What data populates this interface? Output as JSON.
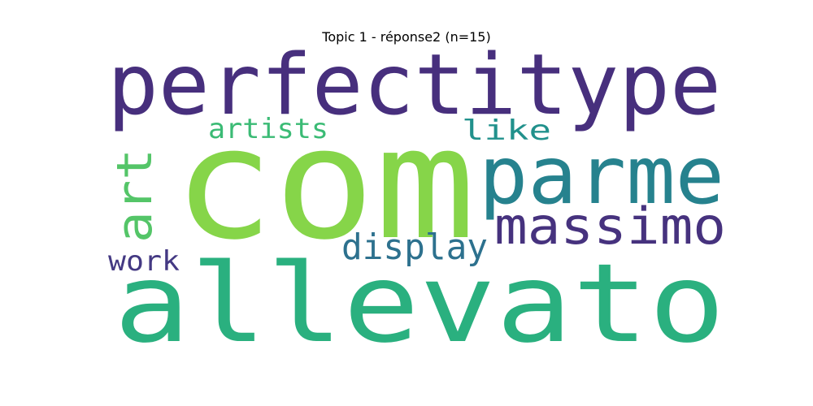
{
  "title": "Topic 1 - réponse2 (n=15)",
  "words": [
    {
      "text": "perfectitype",
      "color": "#472f7d"
    },
    {
      "text": "com",
      "color": "#86d549"
    },
    {
      "text": "parme",
      "color": "#26828e"
    },
    {
      "text": "allevato",
      "color": "#2ab07f"
    },
    {
      "text": "massimo",
      "color": "#46327e"
    },
    {
      "text": "art",
      "color": "#54c568"
    },
    {
      "text": "artists",
      "color": "#3bbb75"
    },
    {
      "text": "like",
      "color": "#21918c"
    },
    {
      "text": "display",
      "color": "#2d718e"
    },
    {
      "text": "work",
      "color": "#443983"
    }
  ]
}
